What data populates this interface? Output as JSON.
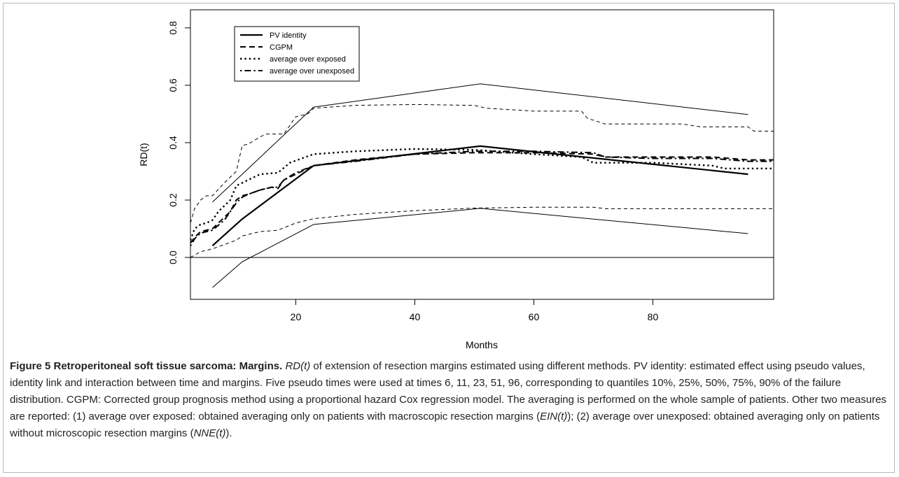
{
  "chart_data": {
    "type": "line",
    "xlabel": "Months",
    "ylabel": "RD(t)",
    "xlim": [
      2.3,
      100.3
    ],
    "ylim": [
      -0.146,
      0.863
    ],
    "xticks": [
      20,
      40,
      60,
      80
    ],
    "yticks": [
      {
        "value": 0,
        "label": "0.0"
      },
      0.2,
      0.4,
      0.6,
      0.8
    ],
    "hlines": [
      0
    ],
    "legend": "top-left",
    "series": [
      {
        "name": "PV identity",
        "color": "#000000",
        "style": "solid",
        "width": 2.2,
        "x": [
          6,
          11,
          23,
          51,
          96
        ],
        "values": [
          0.041,
          0.134,
          0.32,
          0.388,
          0.29
        ]
      },
      {
        "name": "CGPM",
        "color": "#000000",
        "style": "dashed",
        "width": 2,
        "x": [
          2.3,
          3,
          4,
          5,
          6,
          7,
          8,
          9,
          10,
          11,
          12,
          14,
          16,
          17,
          18,
          20,
          23,
          30,
          40,
          50,
          60,
          70,
          72,
          80,
          90,
          96,
          100.3
        ],
        "values": [
          0.05,
          0.07,
          0.09,
          0.095,
          0.1,
          0.12,
          0.14,
          0.16,
          0.2,
          0.215,
          0.22,
          0.235,
          0.245,
          0.24,
          0.27,
          0.29,
          0.32,
          0.34,
          0.36,
          0.365,
          0.365,
          0.36,
          0.35,
          0.35,
          0.35,
          0.34,
          0.34
        ]
      },
      {
        "name": "average over exposed",
        "color": "#000000",
        "style": "dotted",
        "width": 2.4,
        "x": [
          2.3,
          3,
          4,
          5,
          6,
          7,
          8,
          9,
          10,
          12,
          14,
          17,
          19,
          21,
          23,
          30,
          40,
          50,
          60,
          68,
          70,
          80,
          90,
          92,
          100.3
        ],
        "values": [
          0.06,
          0.1,
          0.115,
          0.12,
          0.13,
          0.16,
          0.18,
          0.2,
          0.25,
          0.27,
          0.29,
          0.295,
          0.33,
          0.345,
          0.36,
          0.37,
          0.378,
          0.375,
          0.36,
          0.35,
          0.33,
          0.33,
          0.32,
          0.31,
          0.31
        ]
      },
      {
        "name": "average over unexposed",
        "color": "#000000",
        "style": "dashdot",
        "width": 2,
        "x": [
          2.3,
          3,
          4,
          6,
          8,
          10,
          11,
          12,
          14,
          16,
          17,
          18,
          20,
          23,
          30,
          40,
          50,
          60,
          70,
          72,
          80,
          90,
          96,
          100.3
        ],
        "values": [
          0.04,
          0.065,
          0.085,
          0.095,
          0.13,
          0.19,
          0.21,
          0.22,
          0.235,
          0.245,
          0.245,
          0.27,
          0.295,
          0.32,
          0.335,
          0.36,
          0.37,
          0.37,
          0.365,
          0.35,
          0.345,
          0.345,
          0.335,
          0.335
        ]
      },
      {
        "color": "#000000",
        "style": "solid",
        "width": 1,
        "x": [
          6,
          11,
          23,
          51,
          96
        ],
        "values": [
          0.193,
          0.29,
          0.524,
          0.605,
          0.498
        ]
      },
      {
        "color": "#000000",
        "style": "solid",
        "width": 1,
        "x": [
          6,
          11,
          23,
          51,
          96
        ],
        "values": [
          -0.105,
          -0.015,
          0.115,
          0.171,
          0.083
        ]
      },
      {
        "color": "#000000",
        "style": "thindash",
        "width": 1,
        "x": [
          2.3,
          3,
          4,
          5,
          6,
          8,
          10,
          11,
          12,
          14,
          15,
          18,
          20,
          22,
          23,
          30,
          40,
          50,
          52,
          60,
          68,
          69,
          72,
          85,
          88,
          96,
          97,
          100.3
        ],
        "values": [
          0.12,
          0.17,
          0.2,
          0.215,
          0.215,
          0.26,
          0.3,
          0.39,
          0.395,
          0.42,
          0.43,
          0.43,
          0.49,
          0.5,
          0.52,
          0.53,
          0.533,
          0.53,
          0.52,
          0.51,
          0.51,
          0.485,
          0.465,
          0.465,
          0.455,
          0.455,
          0.44,
          0.44
        ]
      },
      {
        "color": "#000000",
        "style": "thindash",
        "width": 1,
        "x": [
          2.3,
          4,
          6,
          8,
          10,
          11,
          14,
          17,
          20,
          23,
          30,
          40,
          50,
          60,
          70,
          72,
          100.3
        ],
        "values": [
          0.0,
          0.02,
          0.03,
          0.045,
          0.06,
          0.075,
          0.09,
          0.095,
          0.12,
          0.135,
          0.15,
          0.163,
          0.172,
          0.175,
          0.175,
          0.17,
          0.17
        ]
      }
    ]
  },
  "caption": {
    "segments": [
      {
        "text": "Figure 5 Retroperitoneal soft tissue sarcoma: Margins.",
        "style": "bold"
      },
      {
        "text": " ",
        "style": "normal"
      },
      {
        "text": "RD(t)",
        "style": "italic"
      },
      {
        "text": " of extension of resection margins estimated using different methods. PV identity: estimated effect using pseudo values, identity link and interaction between time and margins. Five pseudo times were used at times 6, 11, 23, 51, 96, corresponding to quantiles 10%, 25%, 50%, 75%, 90% of the failure distribution. CGPM: Corrected group prognosis method using a proportional hazard Cox regression model. The averaging is performed on the whole sample of patients. Other two measures are reported: (1) average over exposed: obtained averaging only on patients with macroscopic resection margins (",
        "style": "normal"
      },
      {
        "text": "EIN(t)",
        "style": "italic"
      },
      {
        "text": "); (2) average over unexposed: obtained averaging only on patients without microscopic resection margins (",
        "style": "normal"
      },
      {
        "text": "NNE(t)",
        "style": "italic"
      },
      {
        "text": ").",
        "style": "normal"
      }
    ]
  }
}
